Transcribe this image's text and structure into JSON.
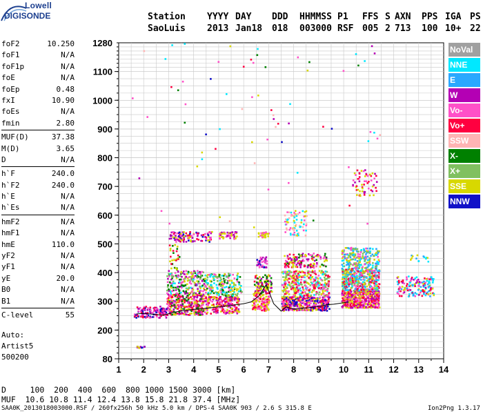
{
  "logo": {
    "line1": "Lowell",
    "line2": "DIGISONDE"
  },
  "header": {
    "row1": [
      "Station",
      "YYYY",
      "DAY",
      "DDD",
      "HHMMSS",
      "P1",
      "FFS",
      "S",
      "AXN",
      "PPS",
      "IGA",
      "PS"
    ],
    "row2": [
      "SaoLuis",
      "2013",
      "Jan18",
      "018",
      "003000",
      "RSF",
      "005",
      "2",
      "713",
      "100",
      "10+",
      "22"
    ]
  },
  "params": [
    {
      "group": [
        [
          "foF2",
          "10.250"
        ],
        [
          "foF1",
          "N/A"
        ],
        [
          "foF1p",
          "N/A"
        ],
        [
          "foE",
          "N/A"
        ],
        [
          "foEp",
          "0.48"
        ],
        [
          "fxI",
          "10.90"
        ],
        [
          "foEs",
          "N/A"
        ],
        [
          "fmin",
          "2.80"
        ]
      ]
    },
    {
      "group": [
        [
          "MUF(D)",
          "37.38"
        ],
        [
          "M(D)",
          "3.65"
        ],
        [
          "D",
          "N/A"
        ]
      ]
    },
    {
      "group": [
        [
          "h`F",
          "240.0"
        ],
        [
          "h`F2",
          "240.0"
        ],
        [
          "h`E",
          "N/A"
        ],
        [
          "h`Es",
          "N/A"
        ]
      ]
    },
    {
      "group": [
        [
          "hmF2",
          "N/A"
        ],
        [
          "hmF1",
          "N/A"
        ],
        [
          "hmE",
          "110.0"
        ],
        [
          "yF2",
          "N/A"
        ],
        [
          "yF1",
          "N/A"
        ],
        [
          "yE",
          "20.0"
        ],
        [
          "B0",
          "N/A"
        ],
        [
          "B1",
          "N/A"
        ]
      ]
    },
    {
      "group": [
        [
          "C-level",
          "55"
        ]
      ]
    }
  ],
  "auto": {
    "line1": "Auto:",
    "line2": "Artist5",
    "line3": "500200"
  },
  "legend": [
    {
      "label": "NoVal",
      "bg": "#a0a0a0",
      "fg": "#ffffff"
    },
    {
      "label": "NNE",
      "bg": "#00e8ff",
      "fg": "#ffffff"
    },
    {
      "label": "E",
      "bg": "#2aa8ff",
      "fg": "#ffffff"
    },
    {
      "label": "W",
      "bg": "#b400b4",
      "fg": "#ffffff"
    },
    {
      "label": "Vo-",
      "bg": "#ff50c8",
      "fg": "#ffffff"
    },
    {
      "label": "Vo+",
      "bg": "#ff0040",
      "fg": "#ffffff"
    },
    {
      "label": "SSW",
      "bg": "#ffb4b4",
      "fg": "#ffffff"
    },
    {
      "label": "X-",
      "bg": "#008000",
      "fg": "#ffffff"
    },
    {
      "label": "X+",
      "bg": "#80c060",
      "fg": "#ffffff"
    },
    {
      "label": "SSE",
      "bg": "#d8d800",
      "fg": "#ffffff"
    },
    {
      "label": "NNW",
      "bg": "#1010c8",
      "fg": "#ffffff"
    }
  ],
  "footer": {
    "d_line": "D     100  200  400  600  800 1000 1500 3000 [km]",
    "muf_line": "MUF  10.6 10.8 11.4 12.4 13.8 15.8 21.8 37.4 [MHz]",
    "file_line": "SAA0K_2013018003000.RSF / 260fx256h 50 kHz 5.0 km / DPS-4 SAA0K 903 / 2.6 S 315.8 E",
    "version": "Ion2Png 1.3.17"
  },
  "chart_data": {
    "type": "scatter",
    "x_ticks": [
      1,
      2,
      3,
      4,
      5,
      6,
      7,
      8,
      9,
      10,
      11,
      12,
      13,
      14
    ],
    "y_ticks": [
      80,
      200,
      300,
      400,
      500,
      600,
      700,
      800,
      900,
      1000,
      1100,
      1280
    ],
    "xlim": [
      1,
      14
    ],
    "ylim": [
      80,
      1280
    ],
    "grid": true,
    "trace_line": {
      "x": [
        1.7,
        2.0,
        2.4,
        2.8,
        3.2,
        3.6,
        4.0,
        4.5,
        5.0,
        5.5,
        6.0,
        6.3,
        6.6,
        6.9,
        7.2,
        7.5,
        7.7,
        8.0,
        8.3,
        8.6,
        9.0,
        9.3,
        9.6,
        9.9,
        10.2
      ],
      "y": [
        256,
        258,
        255,
        252,
        262,
        268,
        272,
        276,
        281,
        286,
        292,
        298,
        318,
        358,
        292,
        266,
        281,
        272,
        276,
        278,
        282,
        288,
        290,
        294,
        298
      ]
    },
    "echo_clusters": [
      {
        "x": [
          1.6,
          2.9
        ],
        "y": [
          245,
          285
        ],
        "n": 130,
        "colors": [
          "#ff0040",
          "#b400b4",
          "#ff50c8",
          "#1010c8"
        ]
      },
      {
        "x": [
          2.9,
          4.4
        ],
        "y": [
          255,
          330
        ],
        "n": 320,
        "colors": [
          "#ff0040",
          "#ff50c8",
          "#b400b4",
          "#008000",
          "#d8d800"
        ]
      },
      {
        "x": [
          2.9,
          4.4
        ],
        "y": [
          330,
          410
        ],
        "n": 220,
        "colors": [
          "#008000",
          "#ff50c8",
          "#80c060",
          "#d8d800",
          "#b400b4",
          "#00e8ff"
        ]
      },
      {
        "x": [
          3.0,
          3.4
        ],
        "y": [
          410,
          500
        ],
        "n": 30,
        "colors": [
          "#008000",
          "#d8d800",
          "#ff0040"
        ]
      },
      {
        "x": [
          4.4,
          5.8
        ],
        "y": [
          260,
          320
        ],
        "n": 220,
        "colors": [
          "#ff0040",
          "#ff50c8",
          "#d8d800",
          "#b400b4"
        ]
      },
      {
        "x": [
          4.4,
          5.9
        ],
        "y": [
          320,
          400
        ],
        "n": 200,
        "colors": [
          "#d8d800",
          "#80c060",
          "#ff50c8",
          "#008000",
          "#00e8ff"
        ]
      },
      {
        "x": [
          6.3,
          7.0
        ],
        "y": [
          270,
          330
        ],
        "n": 120,
        "colors": [
          "#ff0040",
          "#d8d800",
          "#ff50c8"
        ]
      },
      {
        "x": [
          6.4,
          7.1
        ],
        "y": [
          330,
          395
        ],
        "n": 110,
        "colors": [
          "#d8d800",
          "#ff0040",
          "#b400b4",
          "#008000"
        ]
      },
      {
        "x": [
          6.5,
          6.9
        ],
        "y": [
          420,
          460
        ],
        "n": 40,
        "colors": [
          "#b400b4",
          "#1010c8",
          "#ff50c8"
        ]
      },
      {
        "x": [
          7.5,
          9.4
        ],
        "y": [
          270,
          320
        ],
        "n": 380,
        "colors": [
          "#ff0040",
          "#ff50c8",
          "#d8d800",
          "#b400b4",
          "#1010c8"
        ]
      },
      {
        "x": [
          7.5,
          9.4
        ],
        "y": [
          320,
          410
        ],
        "n": 380,
        "colors": [
          "#d8d800",
          "#ff50c8",
          "#00e8ff",
          "#80c060",
          "#ff0040"
        ]
      },
      {
        "x": [
          7.6,
          9.3
        ],
        "y": [
          420,
          470
        ],
        "n": 150,
        "colors": [
          "#b400b4",
          "#d8d800",
          "#ff0040",
          "#ff50c8",
          "#008000"
        ]
      },
      {
        "x": [
          7.6,
          8.5
        ],
        "y": [
          530,
          620
        ],
        "n": 70,
        "colors": [
          "#d8d800",
          "#ffb4b4",
          "#ff50c8",
          "#00e8ff"
        ]
      },
      {
        "x": [
          9.9,
          11.4
        ],
        "y": [
          280,
          340
        ],
        "n": 450,
        "colors": [
          "#ff0040",
          "#ff50c8",
          "#b400b4",
          "#d8d800"
        ]
      },
      {
        "x": [
          9.9,
          11.4
        ],
        "y": [
          340,
          420
        ],
        "n": 420,
        "colors": [
          "#d8d800",
          "#00e8ff",
          "#ff50c8",
          "#80c060",
          "#2aa8ff",
          "#ff0040"
        ]
      },
      {
        "x": [
          9.9,
          11.4
        ],
        "y": [
          420,
          490
        ],
        "n": 220,
        "colors": [
          "#d8d800",
          "#2aa8ff",
          "#00e8ff",
          "#ff50c8",
          "#80c060"
        ]
      },
      {
        "x": [
          10.3,
          11.3
        ],
        "y": [
          670,
          760
        ],
        "n": 60,
        "colors": [
          "#ff50c8",
          "#b400b4",
          "#ff0040",
          "#d8d800"
        ]
      },
      {
        "x": [
          3.0,
          4.7
        ],
        "y": [
          510,
          545
        ],
        "n": 120,
        "colors": [
          "#ff0040",
          "#b400b4",
          "#ff50c8",
          "#1010c8",
          "#d8d800"
        ]
      },
      {
        "x": [
          5.0,
          5.7
        ],
        "y": [
          520,
          545
        ],
        "n": 50,
        "colors": [
          "#b400b4",
          "#d8d800",
          "#ff50c8"
        ]
      },
      {
        "x": [
          6.5,
          7.0
        ],
        "y": [
          525,
          545
        ],
        "n": 30,
        "colors": [
          "#d8d800",
          "#ff50c8"
        ]
      },
      {
        "x": [
          12.1,
          13.6
        ],
        "y": [
          320,
          390
        ],
        "n": 150,
        "colors": [
          "#00e8ff",
          "#2aa8ff",
          "#d8d800",
          "#ff50c8",
          "#ff0040",
          "#b400b4"
        ]
      },
      {
        "x": [
          12.6,
          13.4
        ],
        "y": [
          440,
          465
        ],
        "n": 14,
        "colors": [
          "#00e8ff",
          "#2aa8ff",
          "#d8d800"
        ]
      },
      {
        "x": [
          1.7,
          2.1
        ],
        "y": [
          127,
          138
        ],
        "n": 12,
        "colors": [
          "#1010c8",
          "#d8d800",
          "#b400b4"
        ]
      }
    ],
    "scattered": {
      "x": [
        1.5,
        11.5
      ],
      "y": [
        550,
        1280
      ],
      "n": 70,
      "colors": [
        "#d8d800",
        "#ff50c8",
        "#00e8ff",
        "#b400b4",
        "#1010c8",
        "#008000",
        "#ff0040",
        "#ffb4b4"
      ]
    }
  }
}
